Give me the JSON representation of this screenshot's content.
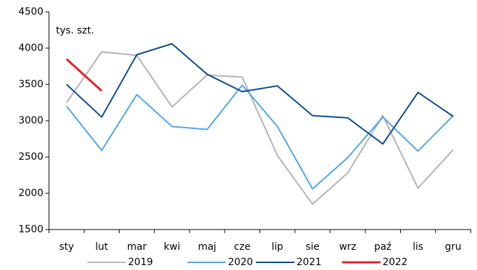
{
  "chart_data": {
    "type": "line",
    "y_unit": "tys. szt.",
    "categories": [
      "sty",
      "lut",
      "mar",
      "kwi",
      "maj",
      "cze",
      "lip",
      "sie",
      "wrz",
      "paź",
      "lis",
      "gru"
    ],
    "series": [
      {
        "name": "2019",
        "color": "#b3b3b3",
        "values": [
          3250,
          3950,
          3900,
          3190,
          3630,
          3600,
          2520,
          1850,
          2280,
          3070,
          2070,
          2600
        ]
      },
      {
        "name": "2020",
        "color": "#4da6ec",
        "values": [
          3200,
          2590,
          3360,
          2920,
          2880,
          3490,
          2920,
          2060,
          2490,
          3050,
          2580,
          3070
        ]
      },
      {
        "name": "2021",
        "color": "#0a4a8c",
        "values": [
          3500,
          3050,
          3910,
          4060,
          3640,
          3400,
          3480,
          3070,
          3040,
          2680,
          3390,
          3060
        ]
      },
      {
        "name": "2022",
        "color": "#e0202a",
        "values": [
          3850,
          3410,
          null,
          null,
          null,
          null,
          null,
          null,
          null,
          null,
          null,
          null
        ]
      }
    ],
    "ylim": [
      1500,
      4500
    ],
    "yticks": [
      1500,
      2000,
      2500,
      3000,
      3500,
      4000,
      4500
    ],
    "legend": "bottom"
  }
}
